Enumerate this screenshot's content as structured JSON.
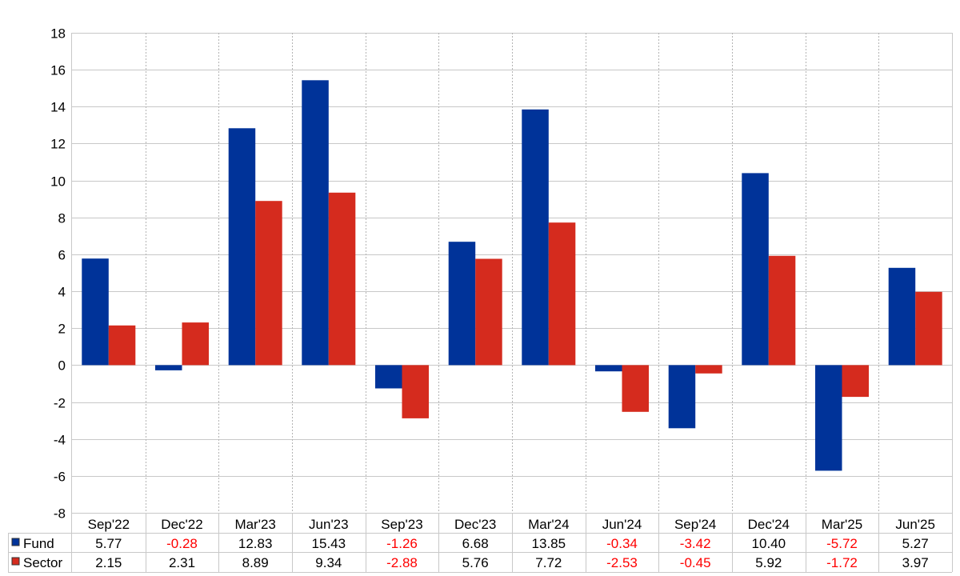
{
  "chart_data": {
    "type": "bar",
    "categories": [
      "Sep'22",
      "Dec'22",
      "Mar'23",
      "Jun'23",
      "Sep'23",
      "Dec'23",
      "Mar'24",
      "Jun'24",
      "Sep'24",
      "Dec'24",
      "Mar'25",
      "Jun'25"
    ],
    "series": [
      {
        "name": "Fund",
        "color": "#003399",
        "values": [
          5.77,
          -0.28,
          12.83,
          15.43,
          -1.26,
          6.68,
          13.85,
          -0.34,
          -3.42,
          10.4,
          -5.72,
          5.27
        ],
        "labels": [
          "5.77",
          "-0.28",
          "12.83",
          "15.43",
          "-1.26",
          "6.68",
          "13.85",
          "-0.34",
          "-3.42",
          "10.40",
          "-5.72",
          "5.27"
        ]
      },
      {
        "name": "Sector",
        "color": "#d52b1e",
        "values": [
          2.15,
          2.31,
          8.89,
          9.34,
          -2.88,
          5.76,
          7.72,
          -2.53,
          -0.45,
          5.92,
          -1.72,
          3.97
        ],
        "labels": [
          "2.15",
          "2.31",
          "8.89",
          "9.34",
          "-2.88",
          "5.76",
          "7.72",
          "-2.53",
          "-0.45",
          "5.92",
          "-1.72",
          "3.97"
        ]
      }
    ],
    "yticks": [
      "18",
      "16",
      "14",
      "12",
      "10",
      "8",
      "6",
      "4",
      "2",
      "0",
      "-2",
      "-4",
      "-6",
      "-8"
    ],
    "ylim": [
      -8,
      18
    ],
    "grid": true,
    "legend": "data-table-left",
    "negative_value_color": "#ff0000"
  }
}
